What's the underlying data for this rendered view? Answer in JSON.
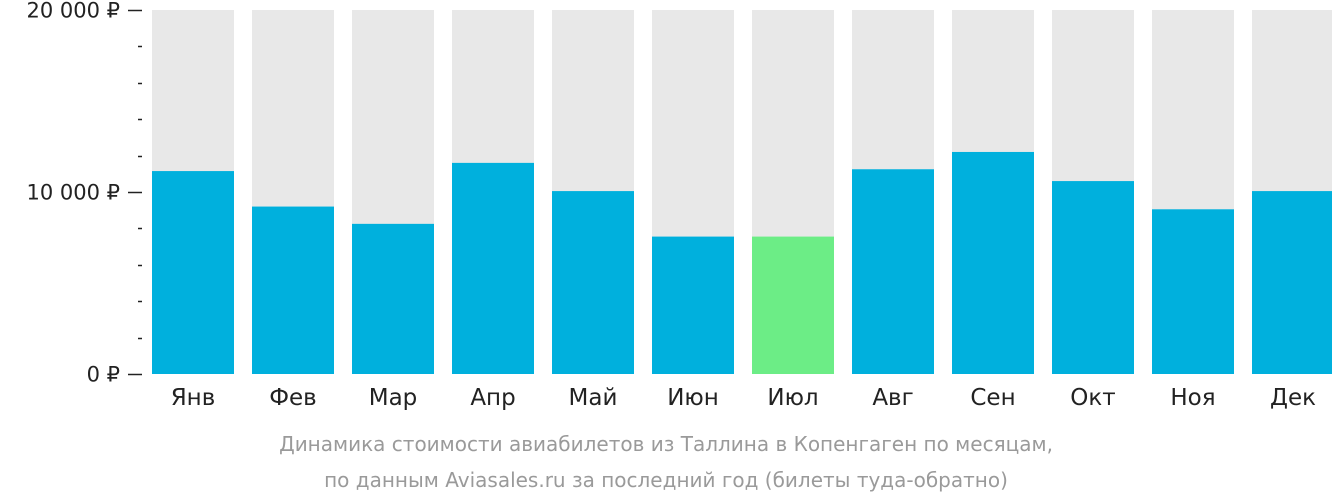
{
  "chart_data": {
    "type": "bar",
    "categories": [
      "Янв",
      "Фев",
      "Мар",
      "Апр",
      "Май",
      "Июн",
      "Июл",
      "Авг",
      "Сен",
      "Окт",
      "Ноя",
      "Дек"
    ],
    "values": [
      11150,
      9200,
      8250,
      11600,
      10050,
      7550,
      7550,
      11250,
      12200,
      10600,
      9050,
      10050
    ],
    "ylim": [
      0,
      20000
    ],
    "y_ticks": [
      {
        "value": 0,
        "label": "0 ₽"
      },
      {
        "value": 10000,
        "label": "10 000 ₽"
      },
      {
        "value": 20000,
        "label": "20 000 ₽"
      }
    ],
    "minor_tick_step": 2000,
    "highlight_index": 6,
    "colors": {
      "bar": "#00b0dd",
      "highlight": "#6ced86",
      "background": "#e8e8e8",
      "axis": "#222222",
      "tick_label": "#222222",
      "caption": "#9a9a9a"
    },
    "grid": false,
    "legend": "none",
    "caption_line1": "Динамика стоимости авиабилетов из Таллина в Копенгаген по месяцам,",
    "caption_line2": "по данным Aviasales.ru за последний год (билеты туда-обратно)"
  }
}
